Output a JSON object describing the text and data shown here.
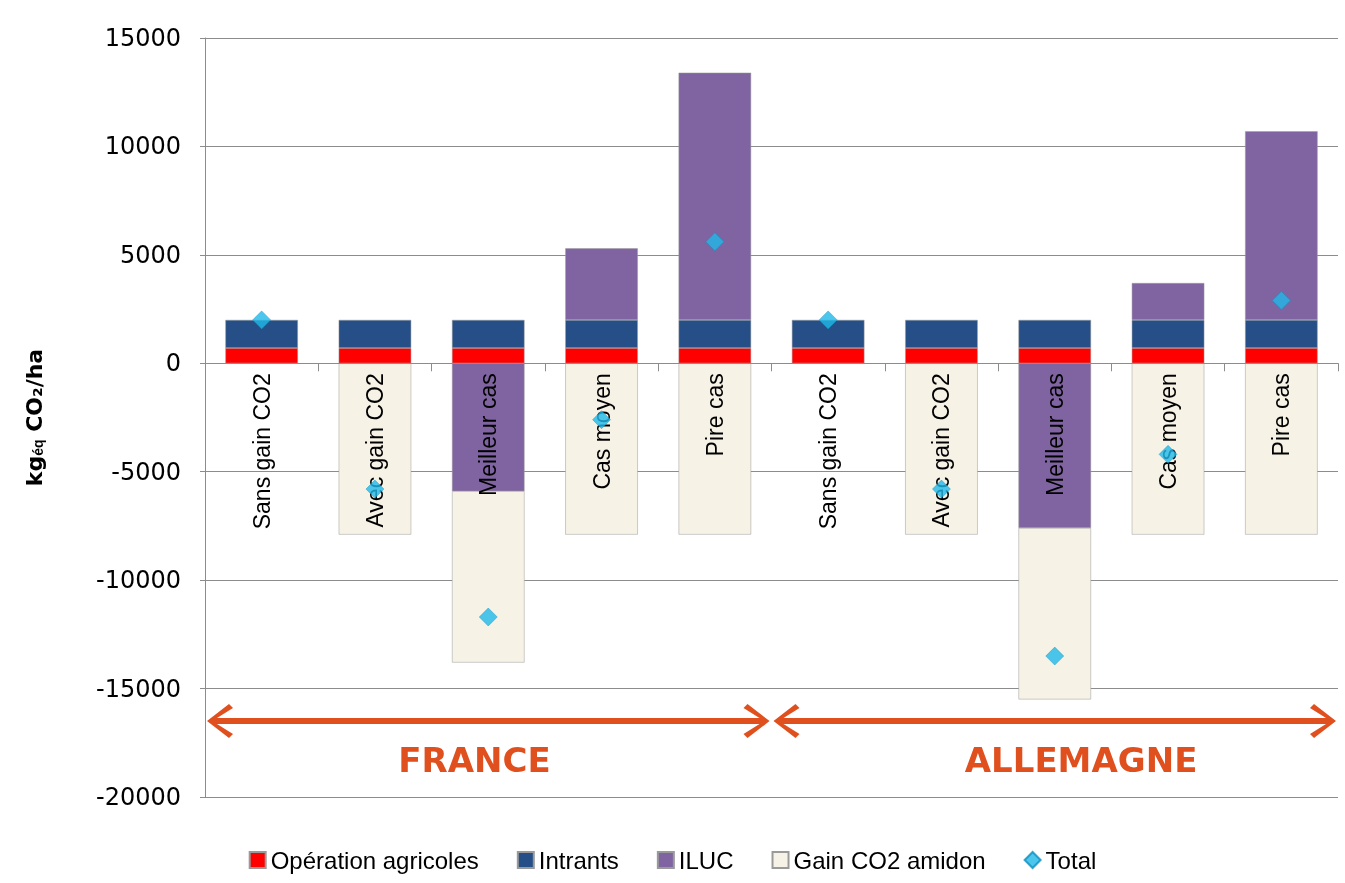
{
  "chart_data": {
    "type": "bar",
    "stacked": true,
    "ylabel": "kg$_{éq}$ CO₂/ha",
    "categories": [
      "Sans gain CO2",
      "Avec gain CO2",
      "Meilleur cas",
      "Cas moyen",
      "Pire cas",
      "Sans gain CO2",
      "Avec gain CO2",
      "Meilleur cas",
      "Cas moyen",
      "Pire cas"
    ],
    "series": [
      {
        "name": "Opération agricoles",
        "color": "#ff0000",
        "values": [
          700,
          700,
          700,
          700,
          700,
          700,
          700,
          700,
          700,
          700
        ]
      },
      {
        "name": "Intrants",
        "color": "#254f86",
        "values": [
          1300,
          1300,
          1300,
          1300,
          1300,
          1300,
          1300,
          1300,
          1300,
          1300
        ]
      },
      {
        "name": "ILUC",
        "color": "#8064a2",
        "values": [
          null,
          null,
          -5900,
          3300,
          11400,
          null,
          null,
          -7600,
          1700,
          8700
        ]
      },
      {
        "name": "Gain CO2 amidon",
        "color": "#f6f3e6",
        "values": [
          null,
          -7900,
          -7900,
          -7900,
          -7900,
          null,
          -7900,
          -7900,
          -7900,
          -7900
        ]
      },
      {
        "name": "Total",
        "type": "scatter",
        "color": "#1fb8e8",
        "marker": "diamond",
        "values": [
          2000,
          -5800,
          -11700,
          -2600,
          5600,
          2000,
          -5800,
          -13500,
          -4200,
          2900
        ]
      }
    ],
    "ylim": [
      -20000,
      15000
    ],
    "yticks": [
      -20000,
      -15000,
      -10000,
      -5000,
      0,
      5000,
      10000,
      15000
    ],
    "grid": "y",
    "legend": "bottom",
    "annotations": [
      "FRANCE",
      "ALLEMAGNE"
    ]
  }
}
